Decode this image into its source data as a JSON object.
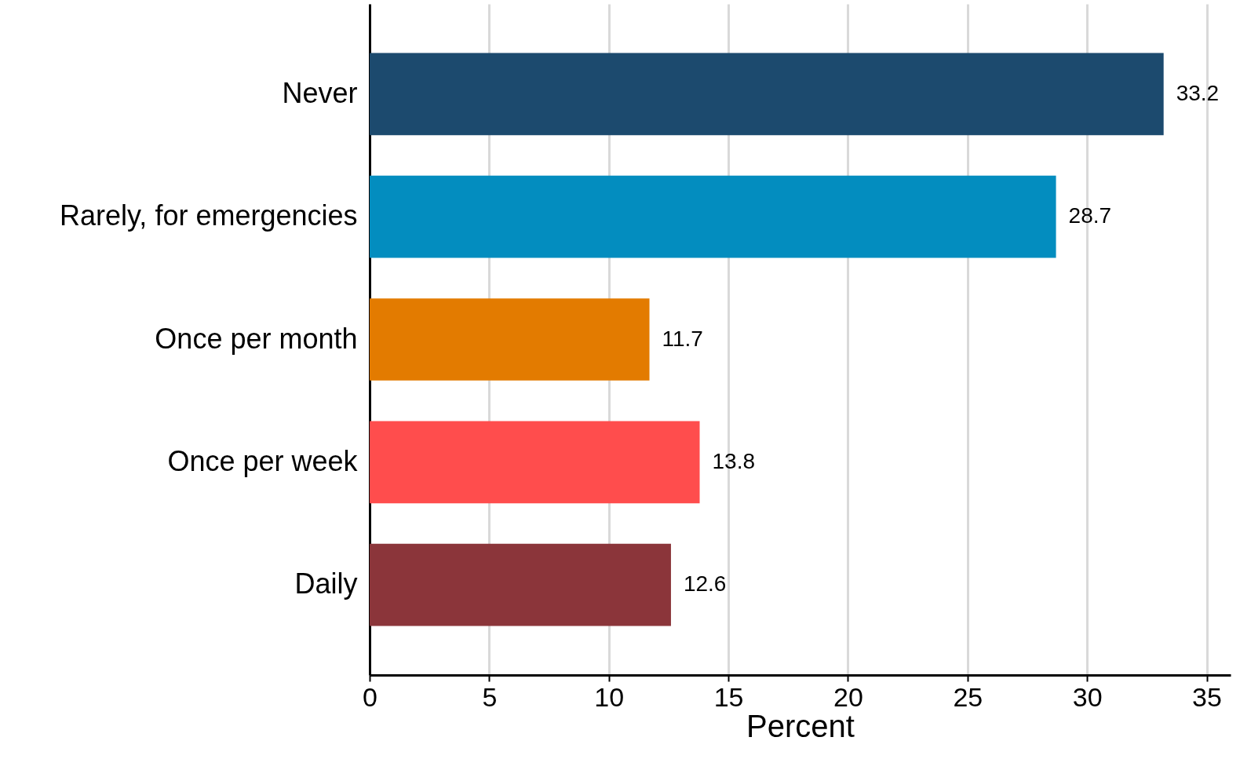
{
  "chart_data": {
    "type": "bar",
    "orientation": "horizontal",
    "categories": [
      "Never",
      "Rarely, for emergencies",
      "Once per month",
      "Once per week",
      "Daily"
    ],
    "values": [
      33.2,
      28.7,
      11.7,
      13.8,
      12.6
    ],
    "colors": [
      "#1c4a6e",
      "#038dbf",
      "#e37b00",
      "#ff4d4d",
      "#8b353a"
    ],
    "xlabel": "Percent",
    "xlim": [
      0,
      36
    ],
    "xticks": [
      0,
      5,
      10,
      15,
      20,
      25,
      30,
      35
    ],
    "grid": "x",
    "data_labels": true
  }
}
